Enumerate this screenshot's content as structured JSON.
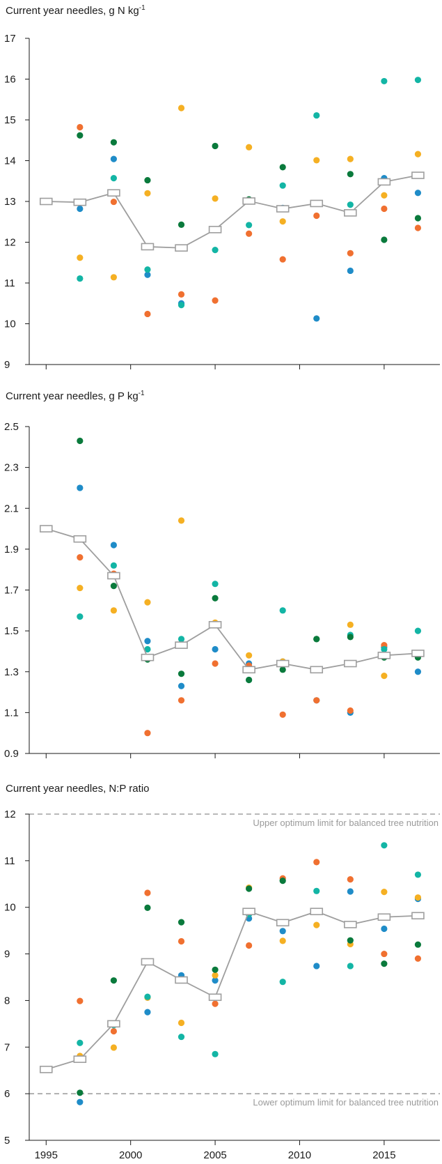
{
  "colors": {
    "blue": "#1f8cc8",
    "orange": "#f07030",
    "yellow": "#f5b023",
    "teal": "#13b5a5",
    "green": "#0a7a3c",
    "mean": "#9e9e9e",
    "axis": "#1a1a1a",
    "ref_line": "#a0a0a0"
  },
  "chart_data": [
    {
      "type": "scatter",
      "title_main": "Current year needles, g N kg",
      "title_sup": "-1",
      "xlim": [
        1994,
        2018.3
      ],
      "ylim": [
        9,
        17
      ],
      "yticks": [
        9,
        10,
        11,
        12,
        13,
        14,
        15,
        16,
        17
      ],
      "ytick_labels": [
        "9",
        "10",
        "11",
        "12",
        "13",
        "14",
        "15",
        "16",
        "17"
      ],
      "xticks": [
        1995,
        2000,
        2005,
        2010,
        2015
      ],
      "xtick_labels": [],
      "series": [
        {
          "color": "blue",
          "points": [
            [
              1995,
              13.0
            ],
            [
              1997,
              12.82
            ],
            [
              1999,
              14.04
            ],
            [
              2001,
              11.2
            ],
            [
              2003,
              10.5
            ],
            [
              2009,
              12.84
            ],
            [
              2011,
              10.13
            ],
            [
              2013,
              11.3
            ],
            [
              2015,
              13.57
            ],
            [
              2017,
              13.21
            ]
          ]
        },
        {
          "color": "orange",
          "points": [
            [
              1997,
              14.82
            ],
            [
              1999,
              12.99
            ],
            [
              2001,
              10.24
            ],
            [
              2003,
              10.72
            ],
            [
              2005,
              10.57
            ],
            [
              2007,
              12.21
            ],
            [
              2009,
              11.58
            ],
            [
              2011,
              12.65
            ],
            [
              2013,
              11.73
            ],
            [
              2015,
              12.82
            ],
            [
              2017,
              12.35
            ]
          ]
        },
        {
          "color": "yellow",
          "points": [
            [
              1997,
              11.62
            ],
            [
              1999,
              11.14
            ],
            [
              2001,
              13.2
            ],
            [
              2003,
              15.29
            ],
            [
              2005,
              13.07
            ],
            [
              2007,
              14.33
            ],
            [
              2009,
              12.51
            ],
            [
              2011,
              14.01
            ],
            [
              2013,
              14.04
            ],
            [
              2015,
              13.15
            ],
            [
              2017,
              14.16
            ]
          ]
        },
        {
          "color": "teal",
          "points": [
            [
              1997,
              11.11
            ],
            [
              1999,
              13.57
            ],
            [
              2001,
              11.33
            ],
            [
              2003,
              10.46
            ],
            [
              2005,
              11.81
            ],
            [
              2007,
              12.42
            ],
            [
              2009,
              13.39
            ],
            [
              2011,
              15.11
            ],
            [
              2013,
              12.92
            ],
            [
              2015,
              15.95
            ],
            [
              2017,
              15.98
            ]
          ]
        },
        {
          "color": "green",
          "points": [
            [
              1997,
              14.62
            ],
            [
              1999,
              14.45
            ],
            [
              2001,
              13.52
            ],
            [
              2003,
              12.43
            ],
            [
              2005,
              14.36
            ],
            [
              2007,
              13.05
            ],
            [
              2009,
              13.84
            ],
            [
              2013,
              13.67
            ],
            [
              2015,
              12.06
            ],
            [
              2017,
              12.59
            ]
          ]
        }
      ],
      "mean": {
        "x": [
          1995,
          1997,
          1999,
          2001,
          2003,
          2005,
          2007,
          2009,
          2011,
          2013,
          2015,
          2017
        ],
        "y": [
          13.0,
          12.98,
          13.21,
          11.89,
          11.86,
          12.31,
          13.01,
          12.82,
          12.95,
          12.72,
          13.48,
          13.64
        ]
      },
      "reference_lines": []
    },
    {
      "type": "scatter",
      "title_main": "Current year needles, g P kg",
      "title_sup": "-1",
      "xlim": [
        1994,
        2018.3
      ],
      "ylim": [
        0.9,
        2.5
      ],
      "yticks": [
        0.9,
        1.1,
        1.3,
        1.5,
        1.7,
        1.9,
        2.1,
        2.3,
        2.5
      ],
      "ytick_labels": [
        "0.9",
        "1.1",
        "1.3",
        "1.5",
        "1.7",
        "1.9",
        "2.1",
        "2.3",
        "2.5"
      ],
      "xticks": [
        1995,
        2000,
        2005,
        2010,
        2015
      ],
      "xtick_labels": [],
      "series": [
        {
          "color": "blue",
          "points": [
            [
              1995,
              2.0
            ],
            [
              1997,
              2.2
            ],
            [
              1999,
              1.92
            ],
            [
              2001,
              1.45
            ],
            [
              2003,
              1.23
            ],
            [
              2005,
              1.41
            ],
            [
              2007,
              1.34
            ],
            [
              2009,
              1.35
            ],
            [
              2011,
              1.16
            ],
            [
              2013,
              1.1
            ],
            [
              2015,
              1.42
            ],
            [
              2017,
              1.3
            ]
          ]
        },
        {
          "color": "orange",
          "points": [
            [
              1997,
              1.86
            ],
            [
              1999,
              1.78
            ],
            [
              2001,
              1.0
            ],
            [
              2003,
              1.16
            ],
            [
              2005,
              1.34
            ],
            [
              2007,
              1.33
            ],
            [
              2009,
              1.09
            ],
            [
              2011,
              1.16
            ],
            [
              2013,
              1.11
            ],
            [
              2015,
              1.43
            ],
            [
              2017,
              1.38
            ]
          ]
        },
        {
          "color": "yellow",
          "points": [
            [
              1997,
              1.71
            ],
            [
              1999,
              1.6
            ],
            [
              2001,
              1.64
            ],
            [
              2003,
              2.04
            ],
            [
              2005,
              1.54
            ],
            [
              2007,
              1.38
            ],
            [
              2009,
              1.35
            ],
            [
              2011,
              1.46
            ],
            [
              2013,
              1.53
            ],
            [
              2015,
              1.28
            ],
            [
              2017,
              1.39
            ]
          ]
        },
        {
          "color": "teal",
          "points": [
            [
              1997,
              1.57
            ],
            [
              1999,
              1.82
            ],
            [
              2001,
              1.41
            ],
            [
              2003,
              1.46
            ],
            [
              2005,
              1.73
            ],
            [
              2007,
              1.26
            ],
            [
              2009,
              1.6
            ],
            [
              2011,
              1.46
            ],
            [
              2013,
              1.48
            ],
            [
              2015,
              1.41
            ],
            [
              2017,
              1.5
            ]
          ]
        },
        {
          "color": "green",
          "points": [
            [
              1997,
              2.43
            ],
            [
              1999,
              1.72
            ],
            [
              2001,
              1.36
            ],
            [
              2003,
              1.29
            ],
            [
              2005,
              1.66
            ],
            [
              2007,
              1.26
            ],
            [
              2009,
              1.31
            ],
            [
              2011,
              1.46
            ],
            [
              2013,
              1.47
            ],
            [
              2015,
              1.37
            ],
            [
              2017,
              1.37
            ]
          ]
        }
      ],
      "mean": {
        "x": [
          1995,
          1997,
          1999,
          2001,
          2003,
          2005,
          2007,
          2009,
          2011,
          2013,
          2015,
          2017
        ],
        "y": [
          2.0,
          1.95,
          1.77,
          1.37,
          1.43,
          1.53,
          1.31,
          1.34,
          1.31,
          1.34,
          1.38,
          1.39
        ]
      },
      "reference_lines": []
    },
    {
      "type": "scatter",
      "title_main": "Current year needles, N:P ratio",
      "title_sup": "",
      "xlim": [
        1994,
        2018.3
      ],
      "ylim": [
        5,
        12
      ],
      "yticks": [
        5,
        6,
        7,
        8,
        9,
        10,
        11,
        12
      ],
      "ytick_labels": [
        "5",
        "6",
        "7",
        "8",
        "9",
        "10",
        "11",
        "12"
      ],
      "xticks": [
        1995,
        2000,
        2005,
        2010,
        2015
      ],
      "xtick_labels": [
        "1995",
        "2000",
        "2005",
        "2010",
        "2015"
      ],
      "series": [
        {
          "color": "blue",
          "points": [
            [
              1995,
              6.52
            ],
            [
              1997,
              5.82
            ],
            [
              2001,
              7.75
            ],
            [
              2003,
              8.54
            ],
            [
              2005,
              8.43
            ],
            [
              2007,
              9.76
            ],
            [
              2009,
              9.49
            ],
            [
              2011,
              8.74
            ],
            [
              2013,
              10.34
            ],
            [
              2015,
              9.54
            ],
            [
              2017,
              10.18
            ]
          ]
        },
        {
          "color": "orange",
          "points": [
            [
              1997,
              7.99
            ],
            [
              1999,
              7.34
            ],
            [
              2001,
              10.31
            ],
            [
              2003,
              9.27
            ],
            [
              2005,
              7.93
            ],
            [
              2007,
              9.18
            ],
            [
              2009,
              10.62
            ],
            [
              2011,
              10.97
            ],
            [
              2013,
              10.6
            ],
            [
              2015,
              9.0
            ],
            [
              2017,
              8.9
            ]
          ]
        },
        {
          "color": "yellow",
          "points": [
            [
              1997,
              6.81
            ],
            [
              1999,
              6.99
            ],
            [
              2001,
              8.06
            ],
            [
              2003,
              7.52
            ],
            [
              2005,
              8.54
            ],
            [
              2007,
              10.42
            ],
            [
              2009,
              9.28
            ],
            [
              2011,
              9.62
            ],
            [
              2013,
              9.21
            ],
            [
              2015,
              10.33
            ],
            [
              2017,
              10.21
            ]
          ]
        },
        {
          "color": "teal",
          "points": [
            [
              1997,
              7.09
            ],
            [
              1999,
              7.47
            ],
            [
              2001,
              8.08
            ],
            [
              2003,
              7.22
            ],
            [
              2005,
              6.85
            ],
            [
              2007,
              9.85
            ],
            [
              2009,
              8.4
            ],
            [
              2011,
              10.35
            ],
            [
              2013,
              8.74
            ],
            [
              2015,
              11.33
            ],
            [
              2017,
              10.7
            ]
          ]
        },
        {
          "color": "green",
          "points": [
            [
              1997,
              6.02
            ],
            [
              1999,
              8.43
            ],
            [
              2001,
              9.99
            ],
            [
              2003,
              9.68
            ],
            [
              2005,
              8.66
            ],
            [
              2007,
              10.4
            ],
            [
              2009,
              10.57
            ],
            [
              2013,
              9.29
            ],
            [
              2015,
              8.79
            ],
            [
              2017,
              9.2
            ]
          ]
        }
      ],
      "mean": {
        "x": [
          1995,
          1997,
          1999,
          2001,
          2003,
          2005,
          2007,
          2009,
          2011,
          2013,
          2015,
          2017
        ],
        "y": [
          6.52,
          6.74,
          7.5,
          8.83,
          8.44,
          8.07,
          9.91,
          9.67,
          9.91,
          9.63,
          9.79,
          9.82
        ]
      },
      "reference_lines": [
        {
          "y": 12,
          "label": "Upper optimum limit for balanced tree nutrition"
        },
        {
          "y": 6,
          "label": "Lower optimum limit for balanced tree nutrition"
        }
      ]
    }
  ]
}
